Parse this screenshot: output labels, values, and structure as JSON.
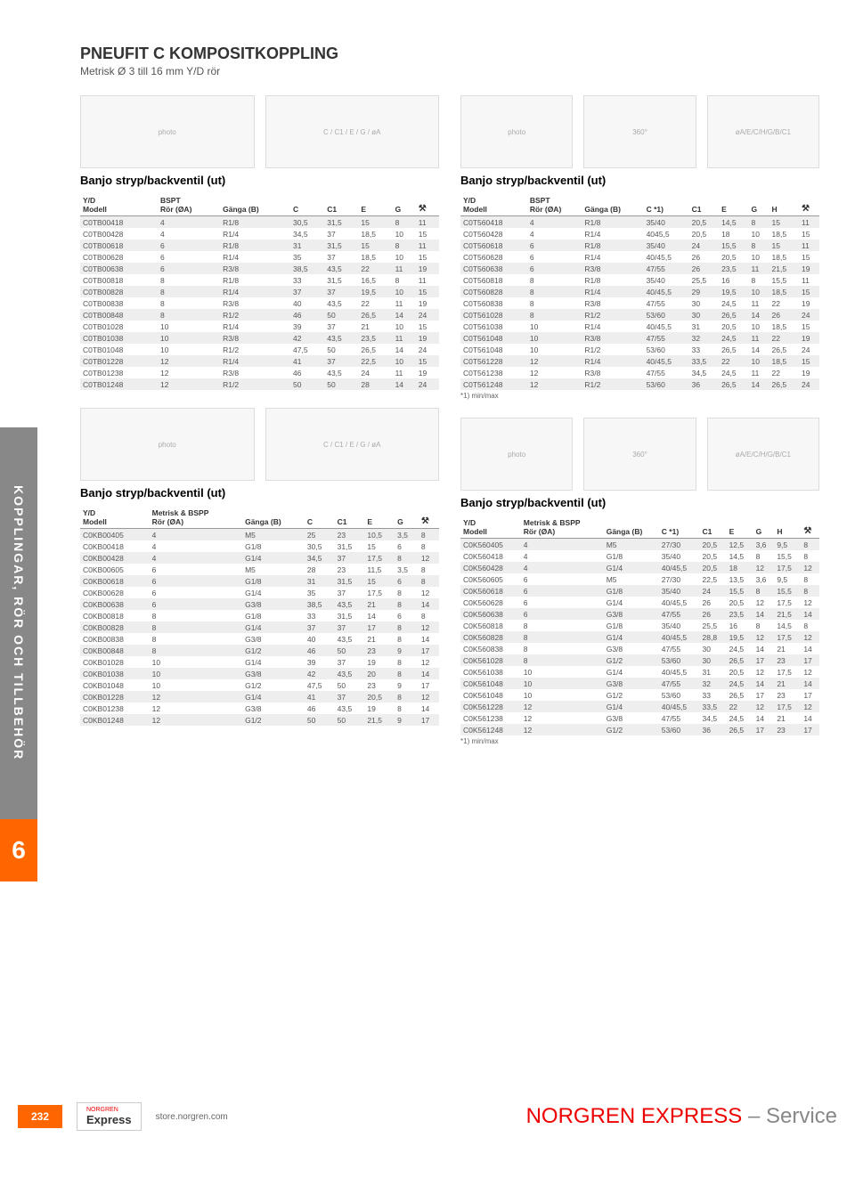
{
  "page": {
    "title": "PNEUFIT C KOMPOSITKOPPLING",
    "subtitle": "Metrisk Ø 3 till 16 mm Y/D rör",
    "section_title": "Banjo stryp/backventil (ut)",
    "side_tab": "KOPPLINGAR, RÖR OCH TILLBEHÖR",
    "side_num": "6",
    "page_num": "232",
    "url": "store.norgren.com",
    "footer_brand": "NORGREN EXPRESS",
    "footer_suffix": "– Service",
    "logo_sub": "NORGREN",
    "logo_brand": "Express",
    "footnote": "*1) min/max",
    "hdr": {
      "yd": "Y/D",
      "modell": "Modell",
      "bspt": "BSPT",
      "mbspp": "Metrisk & BSPP",
      "ror": "Rör (ØA)",
      "ganga": "Gänga (B)",
      "c": "C",
      "c1s": "C *1)",
      "c1": "C1",
      "e": "E",
      "g": "G",
      "h": "H",
      "wrench": "⚒"
    }
  },
  "styling": {
    "accent": "#ff6600",
    "header_rule": "#999999",
    "row_odd": "#eeeeee",
    "row_even": "#ffffff",
    "text": "#555555",
    "font_size_table": 8.5
  },
  "t1": {
    "rows": [
      [
        "C0TB00418",
        "4",
        "R1/8",
        "30,5",
        "31,5",
        "15",
        "8",
        "11"
      ],
      [
        "C0TB00428",
        "4",
        "R1/4",
        "34,5",
        "37",
        "18,5",
        "10",
        "15"
      ],
      [
        "C0TB00618",
        "6",
        "R1/8",
        "31",
        "31,5",
        "15",
        "8",
        "11"
      ],
      [
        "C0TB00628",
        "6",
        "R1/4",
        "35",
        "37",
        "18,5",
        "10",
        "15"
      ],
      [
        "C0TB00638",
        "6",
        "R3/8",
        "38,5",
        "43,5",
        "22",
        "11",
        "19"
      ],
      [
        "C0TB00818",
        "8",
        "R1/8",
        "33",
        "31,5",
        "16,5",
        "8",
        "11"
      ],
      [
        "C0TB00828",
        "8",
        "R1/4",
        "37",
        "37",
        "19,5",
        "10",
        "15"
      ],
      [
        "C0TB00838",
        "8",
        "R3/8",
        "40",
        "43,5",
        "22",
        "11",
        "19"
      ],
      [
        "C0TB00848",
        "8",
        "R1/2",
        "46",
        "50",
        "26,5",
        "14",
        "24"
      ],
      [
        "C0TB01028",
        "10",
        "R1/4",
        "39",
        "37",
        "21",
        "10",
        "15"
      ],
      [
        "C0TB01038",
        "10",
        "R3/8",
        "42",
        "43,5",
        "23,5",
        "11",
        "19"
      ],
      [
        "C0TB01048",
        "10",
        "R1/2",
        "47,5",
        "50",
        "26,5",
        "14",
        "24"
      ],
      [
        "C0TB01228",
        "12",
        "R1/4",
        "41",
        "37",
        "22,5",
        "10",
        "15"
      ],
      [
        "C0TB01238",
        "12",
        "R3/8",
        "46",
        "43,5",
        "24",
        "11",
        "19"
      ],
      [
        "C0TB01248",
        "12",
        "R1/2",
        "50",
        "50",
        "28",
        "14",
        "24"
      ]
    ]
  },
  "t2": {
    "rows": [
      [
        "C0T560418",
        "4",
        "R1/8",
        "35/40",
        "20,5",
        "14,5",
        "8",
        "15",
        "11"
      ],
      [
        "C0T560428",
        "4",
        "R1/4",
        "4045,5",
        "20,5",
        "18",
        "10",
        "18,5",
        "15"
      ],
      [
        "C0T560618",
        "6",
        "R1/8",
        "35/40",
        "24",
        "15,5",
        "8",
        "15",
        "11"
      ],
      [
        "C0T560628",
        "6",
        "R1/4",
        "40/45,5",
        "26",
        "20,5",
        "10",
        "18,5",
        "15"
      ],
      [
        "C0T560638",
        "6",
        "R3/8",
        "47/55",
        "26",
        "23,5",
        "11",
        "21,5",
        "19"
      ],
      [
        "C0T560818",
        "8",
        "R1/8",
        "35/40",
        "25,5",
        "16",
        "8",
        "15,5",
        "11"
      ],
      [
        "C0T560828",
        "8",
        "R1/4",
        "40/45,5",
        "29",
        "19,5",
        "10",
        "18,5",
        "15"
      ],
      [
        "C0T560838",
        "8",
        "R3/8",
        "47/55",
        "30",
        "24,5",
        "11",
        "22",
        "19"
      ],
      [
        "C0T561028",
        "8",
        "R1/2",
        "53/60",
        "30",
        "26,5",
        "14",
        "26",
        "24"
      ],
      [
        "C0T561038",
        "10",
        "R1/4",
        "40/45,5",
        "31",
        "20,5",
        "10",
        "18,5",
        "15"
      ],
      [
        "C0T561048",
        "10",
        "R3/8",
        "47/55",
        "32",
        "24,5",
        "11",
        "22",
        "19"
      ],
      [
        "C0T561048",
        "10",
        "R1/2",
        "53/60",
        "33",
        "26,5",
        "14",
        "26,5",
        "24"
      ],
      [
        "C0T561228",
        "12",
        "R1/4",
        "40/45,5",
        "33,5",
        "22",
        "10",
        "18,5",
        "15"
      ],
      [
        "C0T561238",
        "12",
        "R3/8",
        "47/55",
        "34,5",
        "24,5",
        "11",
        "22",
        "19"
      ],
      [
        "C0T561248",
        "12",
        "R1/2",
        "53/60",
        "36",
        "26,5",
        "14",
        "26,5",
        "24"
      ]
    ]
  },
  "t3": {
    "rows": [
      [
        "C0KB00405",
        "4",
        "M5",
        "25",
        "23",
        "10,5",
        "3,5",
        "8"
      ],
      [
        "C0KB00418",
        "4",
        "G1/8",
        "30,5",
        "31,5",
        "15",
        "6",
        "8"
      ],
      [
        "C0KB00428",
        "4",
        "G1/4",
        "34,5",
        "37",
        "17,5",
        "8",
        "12"
      ],
      [
        "C0KB00605",
        "6",
        "M5",
        "28",
        "23",
        "11,5",
        "3,5",
        "8"
      ],
      [
        "C0KB00618",
        "6",
        "G1/8",
        "31",
        "31,5",
        "15",
        "6",
        "8"
      ],
      [
        "C0KB00628",
        "6",
        "G1/4",
        "35",
        "37",
        "17,5",
        "8",
        "12"
      ],
      [
        "C0KB00638",
        "6",
        "G3/8",
        "38,5",
        "43,5",
        "21",
        "8",
        "14"
      ],
      [
        "C0KB00818",
        "8",
        "G1/8",
        "33",
        "31,5",
        "14",
        "6",
        "8"
      ],
      [
        "C0KB00828",
        "8",
        "G1/4",
        "37",
        "37",
        "17",
        "8",
        "12"
      ],
      [
        "C0KB00838",
        "8",
        "G3/8",
        "40",
        "43,5",
        "21",
        "8",
        "14"
      ],
      [
        "C0KB00848",
        "8",
        "G1/2",
        "46",
        "50",
        "23",
        "9",
        "17"
      ],
      [
        "C0KB01028",
        "10",
        "G1/4",
        "39",
        "37",
        "19",
        "8",
        "12"
      ],
      [
        "C0KB01038",
        "10",
        "G3/8",
        "42",
        "43,5",
        "20",
        "8",
        "14"
      ],
      [
        "C0KB01048",
        "10",
        "G1/2",
        "47,5",
        "50",
        "23",
        "9",
        "17"
      ],
      [
        "C0KB01228",
        "12",
        "G1/4",
        "41",
        "37",
        "20,5",
        "8",
        "12"
      ],
      [
        "C0KB01238",
        "12",
        "G3/8",
        "46",
        "43,5",
        "19",
        "8",
        "14"
      ],
      [
        "C0KB01248",
        "12",
        "G1/2",
        "50",
        "50",
        "21,5",
        "9",
        "17"
      ]
    ]
  },
  "t4": {
    "rows": [
      [
        "C0K560405",
        "4",
        "M5",
        "27/30",
        "20,5",
        "12,5",
        "3,6",
        "9,5",
        "8"
      ],
      [
        "C0K560418",
        "4",
        "G1/8",
        "35/40",
        "20,5",
        "14,5",
        "8",
        "15,5",
        "8"
      ],
      [
        "C0K560428",
        "4",
        "G1/4",
        "40/45,5",
        "20,5",
        "18",
        "12",
        "17,5",
        "12"
      ],
      [
        "C0K560605",
        "6",
        "M5",
        "27/30",
        "22,5",
        "13,5",
        "3,6",
        "9,5",
        "8"
      ],
      [
        "C0K560618",
        "6",
        "G1/8",
        "35/40",
        "24",
        "15,5",
        "8",
        "15,5",
        "8"
      ],
      [
        "C0K560628",
        "6",
        "G1/4",
        "40/45,5",
        "26",
        "20,5",
        "12",
        "17,5",
        "12"
      ],
      [
        "C0K560638",
        "6",
        "G3/8",
        "47/55",
        "26",
        "23,5",
        "14",
        "21,5",
        "14"
      ],
      [
        "C0K560818",
        "8",
        "G1/8",
        "35/40",
        "25,5",
        "16",
        "8",
        "14,5",
        "8"
      ],
      [
        "C0K560828",
        "8",
        "G1/4",
        "40/45,5",
        "28,8",
        "19,5",
        "12",
        "17,5",
        "12"
      ],
      [
        "C0K560838",
        "8",
        "G3/8",
        "47/55",
        "30",
        "24,5",
        "14",
        "21",
        "14"
      ],
      [
        "C0K561028",
        "8",
        "G1/2",
        "53/60",
        "30",
        "26,5",
        "17",
        "23",
        "17"
      ],
      [
        "C0K561038",
        "10",
        "G1/4",
        "40/45,5",
        "31",
        "20,5",
        "12",
        "17,5",
        "12"
      ],
      [
        "C0K561048",
        "10",
        "G3/8",
        "47/55",
        "32",
        "24,5",
        "14",
        "21",
        "14"
      ],
      [
        "C0K561048",
        "10",
        "G1/2",
        "53/60",
        "33",
        "26,5",
        "17",
        "23",
        "17"
      ],
      [
        "C0K561228",
        "12",
        "G1/4",
        "40/45,5",
        "33,5",
        "22",
        "12",
        "17,5",
        "12"
      ],
      [
        "C0K561238",
        "12",
        "G3/8",
        "47/55",
        "34,5",
        "24,5",
        "14",
        "21",
        "14"
      ],
      [
        "C0K561248",
        "12",
        "G1/2",
        "53/60",
        "36",
        "26,5",
        "17",
        "23",
        "17"
      ]
    ]
  }
}
